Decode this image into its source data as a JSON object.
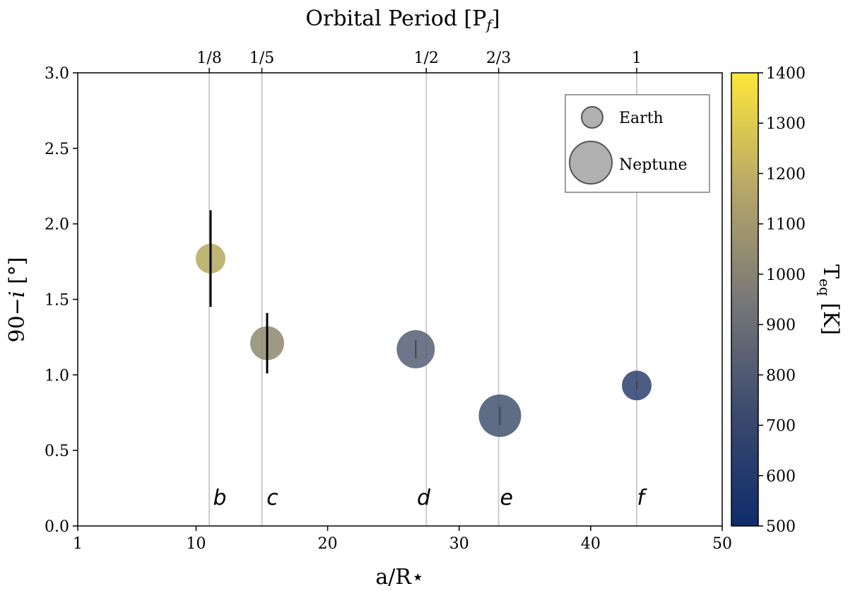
{
  "chart_data": {
    "type": "scatter",
    "xlabel": "a/R⋆",
    "ylabel_main": "90−",
    "ylabel_italic": "i",
    "ylabel_unit": " [°]",
    "top_axis_label_main": "Orbital Period [P",
    "top_axis_label_sub": "f",
    "top_axis_label_end": "]",
    "xlim": [
      1,
      50
    ],
    "ylim": [
      0.0,
      3.0
    ],
    "xticks": [
      1,
      10,
      20,
      30,
      40,
      50
    ],
    "yticks": [
      "0.0",
      "0.5",
      "1.0",
      "1.5",
      "2.0",
      "2.5",
      "3.0"
    ],
    "top_ticks": [
      {
        "label": "1/8",
        "x": 11.0
      },
      {
        "label": "1/5",
        "x": 15.0
      },
      {
        "label": "1/2",
        "x": 27.5
      },
      {
        "label": "2/3",
        "x": 33.0
      },
      {
        "label": "1",
        "x": 43.5
      }
    ],
    "vertical_lines_x": [
      11.0,
      15.0,
      27.5,
      33.0,
      43.5
    ],
    "grid": false,
    "legend_placement": "top-right",
    "legend": [
      {
        "label": "Earth",
        "size": "small"
      },
      {
        "label": "Neptune",
        "size": "large"
      }
    ],
    "points": [
      {
        "planet": "b",
        "x": 11.1,
        "y": 1.77,
        "yerr": 0.32,
        "teq": 1150,
        "size": "medium"
      },
      {
        "planet": "c",
        "x": 15.4,
        "y": 1.21,
        "yerr": 0.2,
        "teq": 1020,
        "size": "medium-large"
      },
      {
        "planet": "d",
        "x": 26.7,
        "y": 1.17,
        "yerr": 0.06,
        "teq": 800,
        "size": "large"
      },
      {
        "planet": "e",
        "x": 33.1,
        "y": 0.73,
        "yerr": 0.06,
        "teq": 720,
        "size": "largest"
      },
      {
        "planet": "f",
        "x": 43.5,
        "y": 0.93,
        "yerr": 0.03,
        "teq": 620,
        "size": "medium"
      }
    ],
    "planet_letters": [
      {
        "label": "b",
        "x": 11.8
      },
      {
        "label": "c",
        "x": 15.8
      },
      {
        "label": "d",
        "x": 27.3
      },
      {
        "label": "e",
        "x": 33.6
      },
      {
        "label": "f",
        "x": 43.8
      }
    ],
    "colorbar": {
      "label_main": "T",
      "label_sub": "eq",
      "label_unit": " [K]",
      "range": [
        500,
        1400
      ],
      "ticks": [
        "500",
        "600",
        "700",
        "800",
        "900",
        "1000",
        "1100",
        "1200",
        "1300",
        "1400"
      ],
      "colors": {
        "low": "#0f2d6b",
        "mid": "#787878",
        "high": "#fde73a"
      }
    }
  }
}
